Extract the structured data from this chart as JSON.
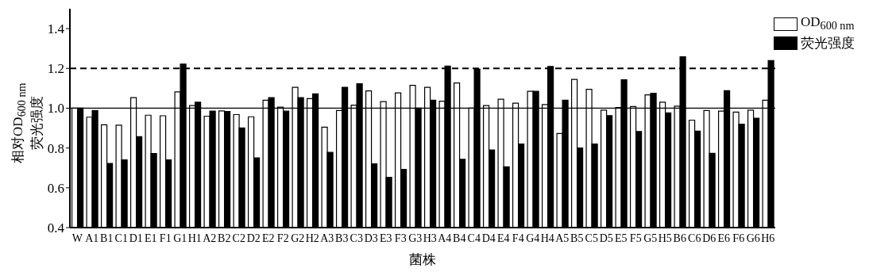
{
  "chart_data": {
    "type": "bar",
    "xlabel": "菌株",
    "ylabel": "相对OD$_{600 nm}$\n荧光强度",
    "categories": [
      "W",
      "A1",
      "B1",
      "C1",
      "D1",
      "E1",
      "F1",
      "G1",
      "H1",
      "A2",
      "B2",
      "C2",
      "D2",
      "E2",
      "F2",
      "G2",
      "H2",
      "A3",
      "B3",
      "C3",
      "D3",
      "E3",
      "F3",
      "G3",
      "H3",
      "A4",
      "B4",
      "C4",
      "D4",
      "E4",
      "F4",
      "G4",
      "H4",
      "A5",
      "B5",
      "C5",
      "D5",
      "E5",
      "F5",
      "G5",
      "H5",
      "B6",
      "C6",
      "D6",
      "E6",
      "F6",
      "G6",
      "H6"
    ],
    "series": [
      {
        "name": "OD$_{600 nm}$",
        "color": "#ffffff",
        "values": [
          1.0,
          0.955,
          0.917,
          0.915,
          1.053,
          0.965,
          0.962,
          1.082,
          1.013,
          0.96,
          0.986,
          0.968,
          0.957,
          1.04,
          1.005,
          1.105,
          1.048,
          0.905,
          0.988,
          1.015,
          1.087,
          1.033,
          1.077,
          1.115,
          1.105,
          1.035,
          1.127,
          1.0,
          1.013,
          1.045,
          1.025,
          1.085,
          1.018,
          0.873,
          1.145,
          1.095,
          0.99,
          1.003,
          1.008,
          1.067,
          1.03,
          1.01,
          0.94,
          0.988,
          0.985,
          0.98,
          0.99,
          1.04
        ]
      },
      {
        "name": "荧光强度",
        "color": "#000000",
        "values": [
          1.0,
          0.988,
          0.722,
          0.74,
          0.857,
          0.772,
          0.74,
          1.222,
          1.03,
          0.985,
          0.983,
          0.901,
          0.75,
          1.053,
          0.985,
          1.053,
          1.072,
          0.778,
          1.105,
          1.123,
          0.72,
          0.653,
          0.693,
          1.0,
          1.04,
          1.212,
          0.743,
          1.197,
          0.79,
          0.705,
          0.82,
          1.085,
          1.21,
          1.04,
          0.8,
          0.82,
          0.963,
          1.143,
          0.883,
          1.075,
          0.977,
          1.258,
          0.885,
          0.773,
          1.088,
          0.92,
          0.95,
          1.24
        ]
      }
    ],
    "ylim": [
      0.4,
      1.5
    ],
    "yticks": [
      0.4,
      0.6,
      0.8,
      {
        "value": 1,
        "label": "1.0"
      },
      1.2,
      1.4
    ],
    "ref_lines": [
      {
        "axis": "y",
        "value": 1.0,
        "line_style": "solid"
      },
      {
        "axis": "y",
        "value": 1.2,
        "line_style": "dashed"
      }
    ],
    "legend": "top right"
  }
}
